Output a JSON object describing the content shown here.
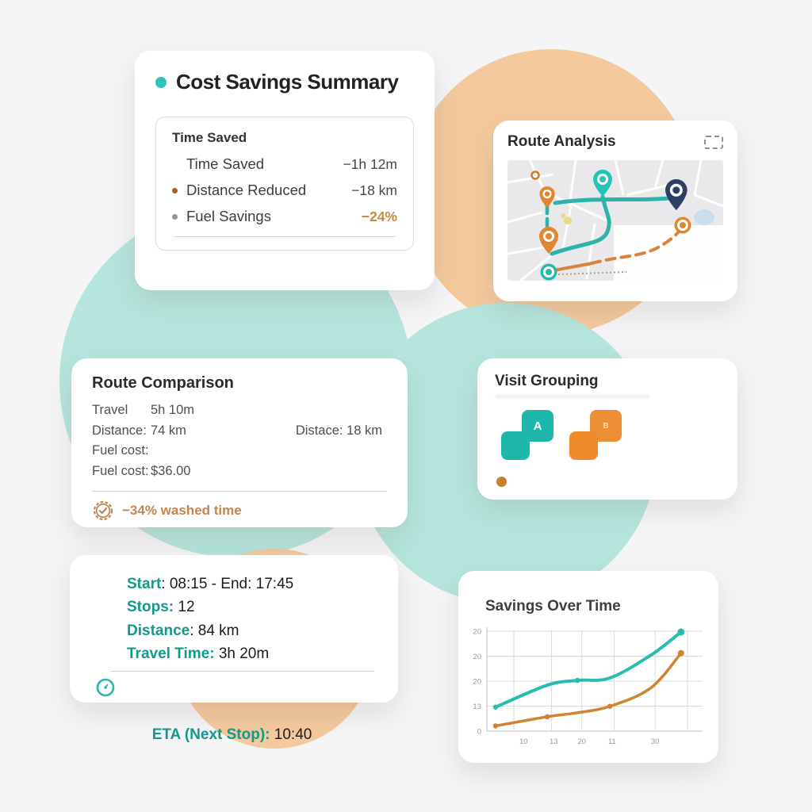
{
  "palette": {
    "teal_accent": "#2ec4bb",
    "teal_dark": "#12998c",
    "orange_accent": "#ec8a2c",
    "tan_text": "#c4854e",
    "navy_pin": "#2d3f63",
    "mint_circle": "#b5e5dd",
    "peach_circle": "#f4c99d"
  },
  "icons": {
    "title_dot": "teal-dot",
    "route_analysis_corner": "dashed-frame-icon",
    "route_comparison_badge": "seal-check-icon",
    "trip_eta": "clock-icon"
  },
  "cost_savings": {
    "title": "Cost Savings Summary",
    "panel_title": "Time Saved",
    "rows": [
      {
        "label": "Time Saved",
        "value": "−1h 12m"
      },
      {
        "label": "Distance Reduced",
        "value": "−18 km"
      },
      {
        "label": "Fuel Savings",
        "value": "−24%"
      }
    ]
  },
  "route_analysis": {
    "title": "Route Analysis"
  },
  "route_comparison": {
    "title": "Route Comparison",
    "travel_label": "Travel",
    "travel_value": "5h 10m",
    "distance_label": "Distance:",
    "distance_value": "74 km",
    "distance_alt": "Distace: 18 km",
    "fuel_label": "Fuel cost:",
    "fuel_label2": "Fuel cost:",
    "fuel_value2": "$36.00",
    "badge_text": "−34% washed time"
  },
  "visit_grouping": {
    "title": "Visit Grouping",
    "group_a_label": "A",
    "group_b_label": "B"
  },
  "trip_details": {
    "rows": [
      {
        "label": "Start",
        "rest": ": 08:15 - End: 17:45"
      },
      {
        "label": "Stops:",
        "rest": " 12"
      },
      {
        "label": "Distance",
        "rest": ": 84 km"
      },
      {
        "label": "Travel Time:",
        "rest": " 3h 20m"
      }
    ],
    "eta": {
      "label": "ETA (Next Stop):",
      "rest": " 10:40"
    }
  },
  "chart_data": {
    "type": "line",
    "title": "Savings Over Time",
    "x": [
      0.04,
      0.28,
      0.42,
      0.57,
      0.76,
      0.9
    ],
    "x_tick_labels": [
      "10",
      "13",
      "20",
      "11",
      "30"
    ],
    "y_tick_labels_top_to_bottom": [
      "20",
      "20",
      "20",
      "13",
      "0"
    ],
    "ylim": [
      0,
      25
    ],
    "grid": true,
    "legend": "none",
    "series": [
      {
        "name": "teal",
        "color": "#2bbcb1",
        "values": [
          6,
          11.5,
          12.7,
          13.3,
          19,
          24.8
        ],
        "marker_indices": [
          0,
          2,
          5
        ]
      },
      {
        "name": "orange",
        "color": "#cf8434",
        "values": [
          1.3,
          3.6,
          4.6,
          6.2,
          10.8,
          19.5
        ],
        "marker_indices": [
          0,
          1,
          3,
          5
        ]
      }
    ]
  }
}
